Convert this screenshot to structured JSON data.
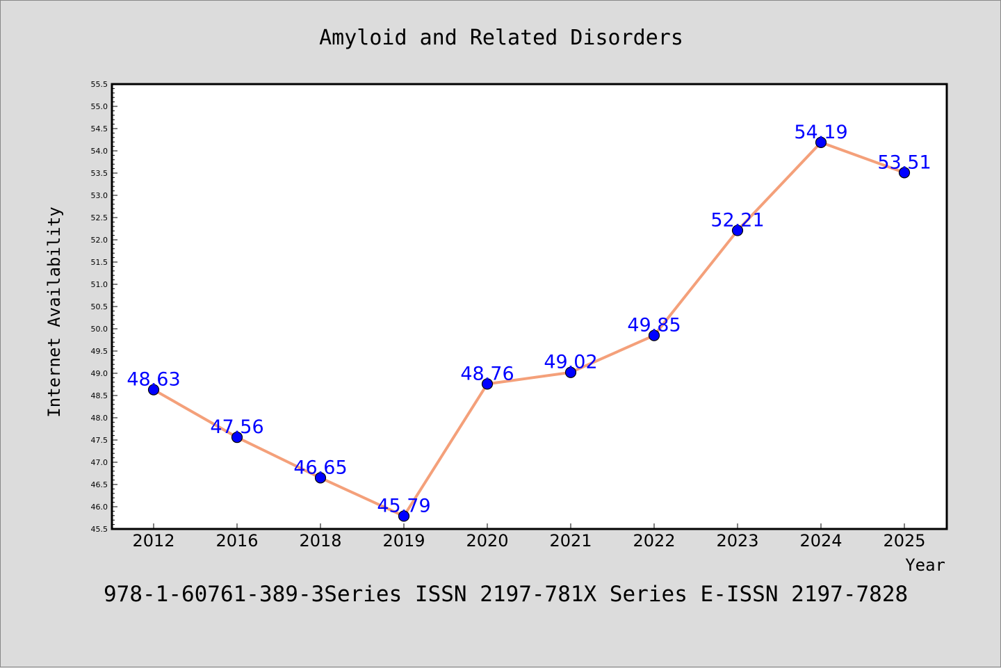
{
  "chart_data": {
    "type": "line",
    "title": "Amyloid and Related Disorders",
    "xlabel": "Year",
    "ylabel": "Internet Availability",
    "categories": [
      "2012",
      "2016",
      "2018",
      "2019",
      "2020",
      "2021",
      "2022",
      "2023",
      "2024",
      "2025"
    ],
    "series": [
      {
        "values": [
          48.63,
          47.56,
          46.65,
          45.79,
          48.76,
          49.02,
          49.85,
          52.21,
          54.19,
          53.51
        ]
      }
    ],
    "data_labels": [
      "48.63",
      "47.56",
      "46.65",
      "45.79",
      "48.76",
      "49.02",
      "49.85",
      "52.21",
      "54.19",
      "53.51"
    ],
    "ylim": [
      45.5,
      55.5
    ],
    "yticks": [
      "45.5",
      "46.0",
      "46.5",
      "47.0",
      "47.5",
      "48.0",
      "48.5",
      "49.0",
      "49.5",
      "50.0",
      "50.5",
      "51.0",
      "51.5",
      "52.0",
      "52.5",
      "53.0",
      "53.5",
      "54.0",
      "54.5",
      "55.0",
      "55.5"
    ],
    "grid": false,
    "colors": {
      "line": "#f4a07a",
      "marker": "#0000ff",
      "label": "#0000ff",
      "background": "#dcdcdc",
      "plot_background": "#ffffff"
    }
  },
  "footer": "978-1-60761-389-3Series ISSN 2197-781X Series E-ISSN 2197-7828"
}
